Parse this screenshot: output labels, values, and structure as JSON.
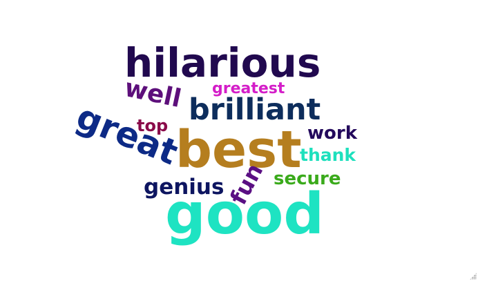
{
  "words": {
    "hilarious": {
      "text": "hilarious",
      "color": "#21094f"
    },
    "greatest": {
      "text": "greatest",
      "color": "#d41dc8"
    },
    "well": {
      "text": "well",
      "color": "#5d0f7b"
    },
    "brilliant": {
      "text": "brilliant",
      "color": "#0d2d5c"
    },
    "great": {
      "text": "great",
      "color": "#0d2a86"
    },
    "top": {
      "text": "top",
      "color": "#8a0b4a"
    },
    "work": {
      "text": "work",
      "color": "#23095c"
    },
    "best": {
      "text": "best",
      "color": "#b57e1f"
    },
    "thank": {
      "text": "thank",
      "color": "#1ee0bd"
    },
    "secure": {
      "text": "secure",
      "color": "#3aaa1b"
    },
    "genius": {
      "text": "genius",
      "color": "#0d1560"
    },
    "fun": {
      "text": "fun",
      "color": "#5a0f83"
    },
    "good": {
      "text": "good",
      "color": "#1ee3c2"
    }
  },
  "resize_grip": {
    "icon": "resize-grip-icon"
  }
}
